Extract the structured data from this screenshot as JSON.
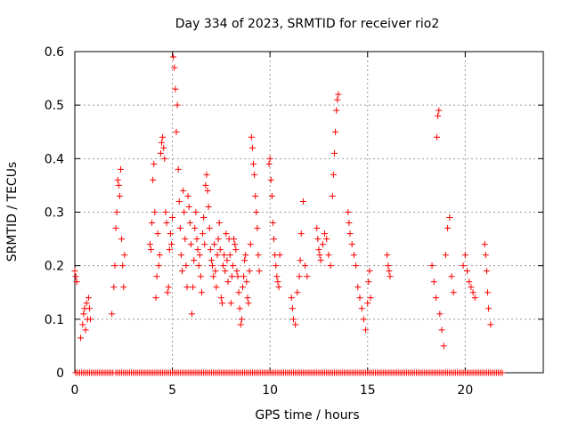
{
  "chart_data": {
    "type": "scatter",
    "title": "Day 334 of 2023, SRMTID for receiver rio2",
    "xlabel": "GPS time / hours",
    "ylabel": "SRMTID / TECUs",
    "xlim": [
      0,
      24
    ],
    "ylim": [
      0,
      0.6
    ],
    "xticks": [
      0,
      5,
      10,
      15,
      20
    ],
    "yticks": [
      0,
      0.1,
      0.2,
      0.3,
      0.4,
      0.5,
      0.6
    ],
    "xtick_labels": [
      "0",
      "5",
      "10",
      "15",
      "20"
    ],
    "ytick_labels": [
      "0",
      "0.1",
      "0.2",
      "0.3",
      "0.4",
      "0.5",
      "0.6"
    ],
    "grid": true,
    "marker": "+",
    "color": "#ff0000",
    "series": [
      {
        "name": "SRMTID",
        "x": [
          0.0,
          0.05,
          0.1,
          0.3,
          0.4,
          0.45,
          0.5,
          0.55,
          0.6,
          0.65,
          0.7,
          0.75,
          0.8,
          1.9,
          2.0,
          2.05,
          2.1,
          2.15,
          2.2,
          2.25,
          2.3,
          2.35,
          2.4,
          2.45,
          2.5,
          2.55,
          3.85,
          3.9,
          3.95,
          4.0,
          4.05,
          4.1,
          4.15,
          4.2,
          4.25,
          4.3,
          4.35,
          4.4,
          4.45,
          4.5,
          4.55,
          4.6,
          4.65,
          4.7,
          4.75,
          4.8,
          4.85,
          4.9,
          4.95,
          5.0,
          5.05,
          5.1,
          5.15,
          5.2,
          5.25,
          5.3,
          5.35,
          5.4,
          5.45,
          5.5,
          5.55,
          5.6,
          5.65,
          5.7,
          5.75,
          5.8,
          5.85,
          5.9,
          5.95,
          6.0,
          6.05,
          6.1,
          6.15,
          6.2,
          6.25,
          6.3,
          6.35,
          6.4,
          6.45,
          6.5,
          6.55,
          6.6,
          6.65,
          6.7,
          6.75,
          6.8,
          6.85,
          6.9,
          6.95,
          7.0,
          7.05,
          7.1,
          7.15,
          7.2,
          7.25,
          7.3,
          7.35,
          7.4,
          7.45,
          7.5,
          7.55,
          7.6,
          7.65,
          7.7,
          7.75,
          7.8,
          7.85,
          7.9,
          7.95,
          8.0,
          8.05,
          8.1,
          8.15,
          8.2,
          8.25,
          8.3,
          8.35,
          8.4,
          8.45,
          8.5,
          8.55,
          8.6,
          8.65,
          8.7,
          8.75,
          8.8,
          8.85,
          8.9,
          8.95,
          9.0,
          9.05,
          9.1,
          9.15,
          9.2,
          9.25,
          9.3,
          9.35,
          9.4,
          9.45,
          9.95,
          10.0,
          10.05,
          10.1,
          10.15,
          10.2,
          10.25,
          10.3,
          10.35,
          10.4,
          10.45,
          10.5,
          11.1,
          11.15,
          11.2,
          11.3,
          11.4,
          11.5,
          11.55,
          11.6,
          11.7,
          11.8,
          11.9,
          12.4,
          12.45,
          12.5,
          12.55,
          12.6,
          12.7,
          12.8,
          12.9,
          13.0,
          13.1,
          13.2,
          13.25,
          13.3,
          13.35,
          13.4,
          13.45,
          13.5,
          14.0,
          14.05,
          14.1,
          14.2,
          14.3,
          14.4,
          14.5,
          14.6,
          14.7,
          14.8,
          14.9,
          15.0,
          15.05,
          15.1,
          15.15,
          16.0,
          16.05,
          16.1,
          16.15,
          18.3,
          18.4,
          18.5,
          18.55,
          18.6,
          18.65,
          18.7,
          18.8,
          18.9,
          19.0,
          19.1,
          19.2,
          19.3,
          19.4,
          19.9,
          20.0,
          20.1,
          20.2,
          20.3,
          20.4,
          20.5,
          21.0,
          21.05,
          21.1,
          21.15,
          21.2,
          21.3
        ],
        "y": [
          0.19,
          0.18,
          0.17,
          0.065,
          0.09,
          0.11,
          0.12,
          0.08,
          0.13,
          0.1,
          0.14,
          0.12,
          0.1,
          0.11,
          0.16,
          0.2,
          0.27,
          0.3,
          0.36,
          0.35,
          0.33,
          0.38,
          0.25,
          0.2,
          0.16,
          0.22,
          0.24,
          0.23,
          0.28,
          0.36,
          0.39,
          0.3,
          0.14,
          0.18,
          0.26,
          0.2,
          0.22,
          0.41,
          0.43,
          0.44,
          0.42,
          0.4,
          0.3,
          0.28,
          0.15,
          0.16,
          0.23,
          0.26,
          0.24,
          0.29,
          0.59,
          0.57,
          0.53,
          0.45,
          0.5,
          0.38,
          0.32,
          0.27,
          0.22,
          0.19,
          0.34,
          0.3,
          0.25,
          0.2,
          0.16,
          0.33,
          0.31,
          0.28,
          0.24,
          0.11,
          0.16,
          0.21,
          0.27,
          0.3,
          0.25,
          0.23,
          0.2,
          0.22,
          0.18,
          0.15,
          0.26,
          0.29,
          0.24,
          0.35,
          0.37,
          0.34,
          0.31,
          0.27,
          0.23,
          0.21,
          0.2,
          0.18,
          0.24,
          0.19,
          0.16,
          0.22,
          0.25,
          0.28,
          0.23,
          0.14,
          0.13,
          0.2,
          0.22,
          0.19,
          0.26,
          0.21,
          0.17,
          0.25,
          0.22,
          0.13,
          0.18,
          0.2,
          0.25,
          0.24,
          0.23,
          0.19,
          0.18,
          0.15,
          0.12,
          0.09,
          0.1,
          0.16,
          0.18,
          0.21,
          0.22,
          0.17,
          0.14,
          0.13,
          0.19,
          0.24,
          0.44,
          0.42,
          0.39,
          0.37,
          0.33,
          0.3,
          0.27,
          0.22,
          0.19,
          0.39,
          0.4,
          0.36,
          0.33,
          0.28,
          0.25,
          0.22,
          0.2,
          0.18,
          0.17,
          0.16,
          0.22,
          0.14,
          0.12,
          0.1,
          0.09,
          0.15,
          0.18,
          0.21,
          0.26,
          0.32,
          0.2,
          0.18,
          0.27,
          0.25,
          0.23,
          0.22,
          0.21,
          0.24,
          0.26,
          0.25,
          0.22,
          0.2,
          0.33,
          0.37,
          0.41,
          0.45,
          0.49,
          0.51,
          0.52,
          0.3,
          0.28,
          0.26,
          0.24,
          0.22,
          0.2,
          0.16,
          0.14,
          0.12,
          0.1,
          0.08,
          0.13,
          0.17,
          0.19,
          0.14,
          0.22,
          0.2,
          0.19,
          0.18,
          0.2,
          0.17,
          0.14,
          0.44,
          0.48,
          0.49,
          0.11,
          0.08,
          0.05,
          0.22,
          0.27,
          0.29,
          0.18,
          0.15,
          0.2,
          0.22,
          0.19,
          0.17,
          0.16,
          0.15,
          0.14,
          0.24,
          0.22,
          0.19,
          0.15,
          0.12,
          0.09
        ]
      }
    ],
    "zero_row_spans": [
      [
        0.05,
        1.95
      ],
      [
        2.1,
        5.1
      ],
      [
        5.2,
        9.3
      ],
      [
        9.4,
        21.9
      ]
    ]
  }
}
